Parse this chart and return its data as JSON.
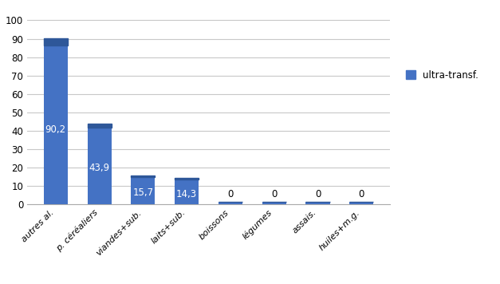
{
  "categories": [
    "autres al.",
    "p. céréaliers",
    "viandes+sub.",
    "laits+sub.",
    "boissons",
    "légumes",
    "assais.",
    "huiles+m.g."
  ],
  "values": [
    90.2,
    43.9,
    15.7,
    14.3,
    0,
    0,
    0,
    0
  ],
  "bar_color": "#4472C4",
  "bar_color_dark": "#2E5799",
  "legend_label": "ultra-transf.",
  "ylim": [
    0,
    108
  ],
  "yticks": [
    0,
    10,
    20,
    30,
    40,
    50,
    60,
    70,
    80,
    90,
    100
  ],
  "bar_labels": [
    "90,2",
    "43,9",
    "15,7",
    "14,3",
    "0",
    "0",
    "0",
    "0"
  ],
  "background_color": "#ffffff",
  "grid_color": "#c8c8c8",
  "zero_bar_height": 1.5,
  "bar_width": 0.55,
  "figsize": [
    6.27,
    3.56
  ]
}
